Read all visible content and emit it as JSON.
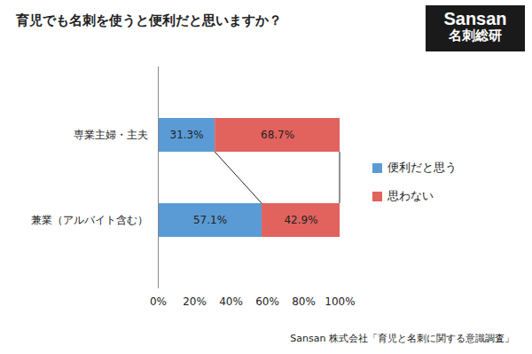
{
  "chart_data": {
    "type": "bar",
    "title": "育児でも名刺を使うと便利だと思いますか？",
    "source": "Sansan 株式会社「育児と名刺に関する意識調査」",
    "logo": [
      "Sansan",
      "名刺総研"
    ],
    "orientation": "horizontal",
    "stacked": true,
    "data_labels": true,
    "legend": "right",
    "grid": false,
    "categories": [
      "専業主婦・主夫",
      "兼業（アルバイト含む）"
    ],
    "series": [
      {
        "name": "便利だと思う",
        "color": "#5a9bd5",
        "values": [
          31.3,
          57.1
        ],
        "value_labels": [
          "31.3%",
          "57.1%"
        ]
      },
      {
        "name": "思わない",
        "color": "#e2625d",
        "values": [
          68.7,
          42.9
        ],
        "value_labels": [
          "68.7%",
          "42.9%"
        ]
      }
    ],
    "xlim": [
      0,
      100
    ],
    "xticks": [
      {
        "value": 0,
        "label": "0%"
      },
      {
        "value": 20,
        "label": "20%"
      },
      {
        "value": 40,
        "label": "40%"
      },
      {
        "value": 60,
        "label": "60%"
      },
      {
        "value": 80,
        "label": "80%"
      },
      {
        "value": 100,
        "label": "100%"
      }
    ]
  }
}
